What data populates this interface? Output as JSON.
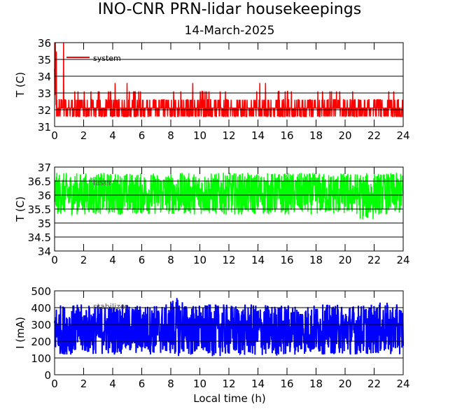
{
  "chart_data": [
    {
      "type": "line",
      "title": "INO-CNR PRN-lidar housekeepings",
      "subtitle": "14-March-2025",
      "ylabel": "T (C)",
      "xlabel": "",
      "xlim": [
        0,
        24
      ],
      "ylim": [
        31,
        36
      ],
      "xticks": [
        "0",
        "2",
        "4",
        "6",
        "8",
        "10",
        "12",
        "14",
        "16",
        "18",
        "20",
        "22",
        "24"
      ],
      "yticks": [
        "31",
        "32",
        "33",
        "34",
        "35",
        "36"
      ],
      "grid": true,
      "legend": "top-left",
      "series": [
        {
          "name": "system",
          "color": "#ff0000",
          "hourly_min": [
            31.5,
            31.5,
            31.5,
            31.5,
            31.5,
            31.5,
            31.5,
            31.5,
            31.5,
            32.0,
            31.5,
            31.5,
            31.5,
            31.5,
            31.5,
            31.5,
            31.5,
            31.5,
            31.5,
            31.5,
            31.5,
            31.5,
            31.5,
            31.5
          ],
          "hourly_max": [
            36.0,
            33.1,
            33.1,
            33.1,
            33.6,
            33.1,
            32.6,
            32.6,
            33.1,
            33.6,
            33.1,
            33.1,
            32.6,
            33.1,
            33.6,
            33.1,
            33.1,
            33.1,
            33.1,
            33.1,
            33.1,
            33.1,
            32.6,
            33.1
          ]
        }
      ]
    },
    {
      "type": "line",
      "ylabel": "T (C)",
      "xlim": [
        0,
        24
      ],
      "ylim": [
        34,
        37
      ],
      "xticks": [
        "0",
        "2",
        "4",
        "6",
        "8",
        "10",
        "12",
        "14",
        "16",
        "18",
        "20",
        "22",
        "24"
      ],
      "yticks": [
        "34",
        "34.5",
        "35",
        "35.5",
        "36",
        "36.5",
        "37"
      ],
      "grid": true,
      "legend": "top-left",
      "series": [
        {
          "name": "laser",
          "color": "#00ff00",
          "hourly_min": [
            35.3,
            35.3,
            35.3,
            35.3,
            35.3,
            35.3,
            35.3,
            35.3,
            35.3,
            35.3,
            35.3,
            35.3,
            35.3,
            35.3,
            35.3,
            35.3,
            35.3,
            35.3,
            35.3,
            35.3,
            35.3,
            35.1,
            35.3,
            35.3
          ],
          "hourly_max": [
            36.8,
            36.8,
            36.8,
            36.8,
            36.8,
            36.8,
            36.8,
            36.8,
            36.8,
            36.8,
            36.8,
            36.8,
            36.8,
            36.8,
            36.8,
            36.8,
            36.8,
            36.8,
            36.8,
            36.8,
            36.8,
            36.8,
            36.8,
            36.8
          ]
        }
      ]
    },
    {
      "type": "line",
      "ylabel": "I (mA)",
      "xlabel": "Local time (h)",
      "xlim": [
        0,
        24
      ],
      "ylim": [
        0,
        500
      ],
      "xticks": [
        "0",
        "2",
        "4",
        "6",
        "8",
        "10",
        "12",
        "14",
        "16",
        "18",
        "20",
        "22",
        "24"
      ],
      "yticks": [
        "0",
        "100",
        "200",
        "300",
        "400",
        "500"
      ],
      "grid": true,
      "legend": "top-left",
      "series": [
        {
          "name": "stabilizer",
          "color": "#0000ff",
          "hourly_min": [
            120,
            120,
            120,
            120,
            120,
            120,
            120,
            120,
            110,
            110,
            110,
            110,
            110,
            110,
            110,
            110,
            120,
            120,
            120,
            120,
            120,
            120,
            120,
            120
          ],
          "hourly_max": [
            420,
            420,
            420,
            420,
            420,
            420,
            420,
            420,
            460,
            420,
            420,
            420,
            420,
            420,
            420,
            420,
            420,
            420,
            420,
            420,
            420,
            420,
            430,
            420
          ]
        }
      ]
    }
  ]
}
